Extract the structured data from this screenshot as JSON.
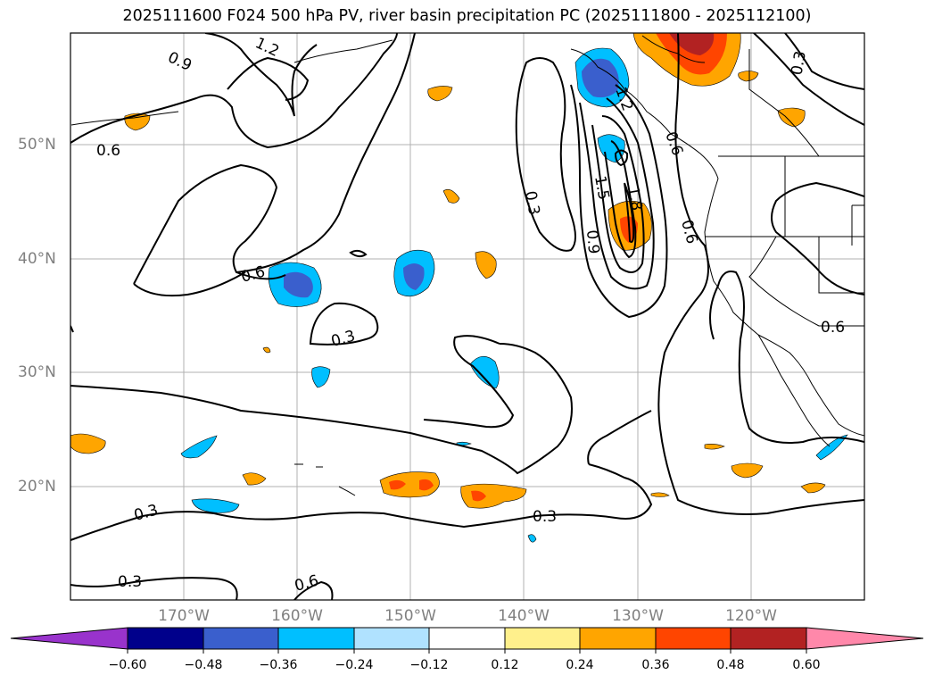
{
  "title": "2025111600 F024 500 hPa PV, river basin precipitation PC (2025111800 - 2025112100)",
  "lat_labels": [
    "50°N",
    "40°N",
    "30°N",
    "20°N"
  ],
  "lon_labels": [
    "170°W",
    "160°W",
    "150°W",
    "140°W",
    "130°W",
    "120°W"
  ],
  "contour_labels": {
    "a": "1.2",
    "b": "0.9",
    "c": "0.6",
    "d": "0.3",
    "e": "1.5",
    "f": "1.8",
    "g": "0.9",
    "h": "0.6",
    "i": "0.6",
    "j": "0.3",
    "k": "0.3",
    "l": "0.6",
    "m": "0.3",
    "n": "0.3",
    "o": "0.3",
    "p": "0.6",
    "q": "0.6",
    "r": "1.2"
  },
  "colorbar": {
    "ticks": [
      "−0.60",
      "−0.48",
      "−0.36",
      "−0.24",
      "−0.12",
      "0.12",
      "0.24",
      "0.36",
      "0.48",
      "0.60"
    ],
    "colors": [
      "#9933cc",
      "#00008b",
      "#3a5fcd",
      "#00bfff",
      "#b0e2ff",
      "#ffffff",
      "#fff08c",
      "#ffa500",
      "#ff4500",
      "#b22222",
      "#ff88aa"
    ]
  },
  "chart_data": {
    "type": "map",
    "field": "500 hPa PV contours with river basin precipitation PC shading",
    "init": "2025111600",
    "forecast_hour": "F024",
    "valid_period": "2025111800 - 2025112100",
    "lat_range": [
      10,
      60
    ],
    "lon_range": [
      -180,
      -110
    ],
    "contour_levels": [
      0.3,
      0.6,
      0.9,
      1.2,
      1.5,
      1.8
    ],
    "shading_levels": [
      -0.6,
      -0.48,
      -0.36,
      -0.24,
      -0.12,
      0.12,
      0.24,
      0.36,
      0.48,
      0.6
    ]
  }
}
